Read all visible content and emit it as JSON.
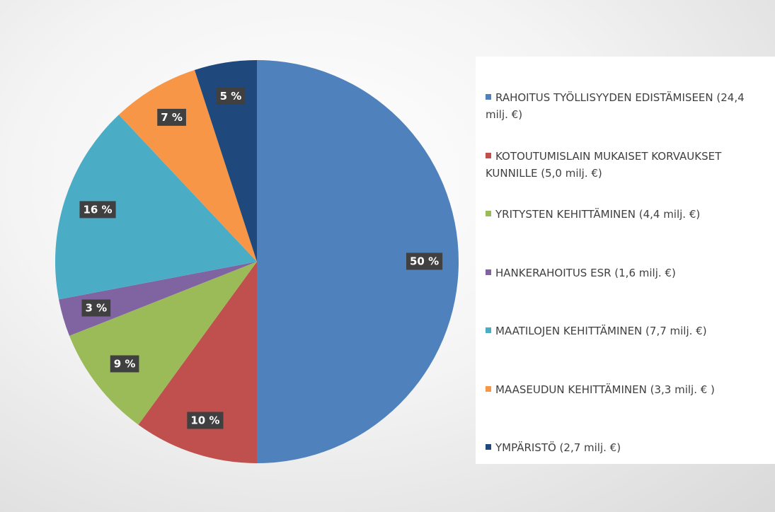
{
  "chart_data": {
    "type": "pie",
    "categories": [
      "RAHOITUS TYÖLLISYYDEN EDISTÄMISEEN (24,4 milj. €)",
      "KOTOUTUMISLAIN MUKAISET KORVAUKSET KUNNILLE (5,0 milj. €)",
      "YRITYSTEN KEHITTÄMINEN (4,4 milj. €)",
      "HANKERAHOITUS ESR (1,6 milj. €)",
      "MAATILOJEN KEHITTÄMINEN (7,7 milj. €)",
      "MAASEUDUN KEHITTÄMINEN (3,3 milj. € )",
      "YMPÄRISTÖ (2,7 milj. €)"
    ],
    "values": [
      50,
      10,
      9,
      3,
      16,
      7,
      5
    ],
    "value_labels": [
      "50 %",
      "10 %",
      "9 %",
      "3 %",
      "16 %",
      "7 %",
      "5 %"
    ],
    "colors": [
      "#4f81bd",
      "#c0504d",
      "#9bbb59",
      "#8064a2",
      "#4bacc6",
      "#f79646",
      "#1f497d"
    ],
    "legend": "right"
  }
}
